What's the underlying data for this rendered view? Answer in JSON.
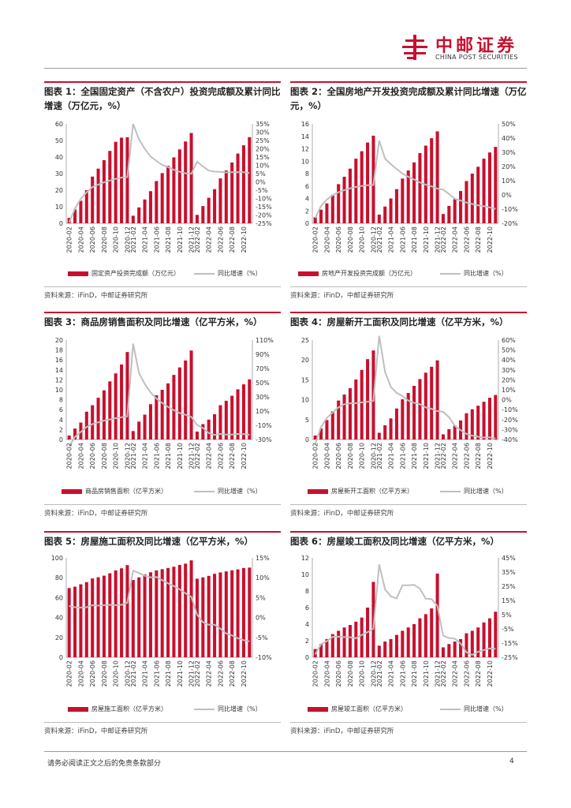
{
  "header": {
    "logo_cn": "中邮证券",
    "logo_en": "CHINA POST SECURITIES"
  },
  "footer": {
    "disclaimer": "请务必阅读正文之后的免责条款部分",
    "page_number": "4"
  },
  "colors": {
    "bar": "#c8102e",
    "line": "#bfbfbf"
  },
  "panels": [
    {
      "title": "图表 1：全国固定资产（不含农户）投资完成额及累计同比增速（万亿元，%）",
      "source": "资料来源：iFinD，中邮证券研究所",
      "bar_legend": "固定资产投资完成额（万亿元）",
      "line_legend": "同比增速（%）"
    },
    {
      "title": "图表 2：全国房地产开发投资完成额及累计同比增速（万亿元，%）",
      "source": "资料来源：iFinD，中邮证券研究所",
      "bar_legend": "房地产开发投资完成额（万亿元）",
      "line_legend": "同比增速（%）"
    },
    {
      "title": "图表 3：商品房销售面积及同比增速（亿平方米，%）",
      "source": "资料来源：iFinD，中邮证券研究所",
      "bar_legend": "商品房销售面积（亿平方米）",
      "line_legend": "同比增速（%）"
    },
    {
      "title": "图表 4：房屋新开工面积及同比增速（亿平方米，%）",
      "source": "资料来源：iFinD，中邮证券研究所",
      "bar_legend": "房屋新开工面积（亿平方米）",
      "line_legend": "同比增速（%）"
    },
    {
      "title": "图表 5：房屋施工面积及同比增速（亿平方米，%）",
      "source": "资料来源：iFinD，中邮证券研究所",
      "bar_legend": "房屋施工面积（亿平方米）",
      "line_legend": "同比增速（%）"
    },
    {
      "title": "图表 6：房屋竣工面积及同比增速（亿平方米，%）",
      "source": "资料来源：iFinD，中邮证券研究所",
      "bar_legend": "房屋竣工面积（亿平方米）",
      "line_legend": "同比增速（%）"
    }
  ],
  "chart_data": [
    {
      "type": "bar",
      "title": "全国固定资产（不含农户）投资完成额及累计同比增速（万亿元，%）",
      "x": [
        "2020-02",
        "2020-03",
        "2020-04",
        "2020-05",
        "2020-06",
        "2020-07",
        "2020-08",
        "2020-09",
        "2020-10",
        "2020-11",
        "2020-12",
        "2021-02",
        "2021-03",
        "2021-04",
        "2021-05",
        "2021-06",
        "2021-07",
        "2021-08",
        "2021-09",
        "2021-10",
        "2021-11",
        "2021-12",
        "2022-02",
        "2022-03",
        "2022-04",
        "2022-05",
        "2022-06",
        "2022-07",
        "2022-08",
        "2022-09",
        "2022-10",
        "2022-11"
      ],
      "x_tick_labels": [
        "2020-02",
        "2020-04",
        "2020-06",
        "2020-08",
        "2020-10",
        "2020-12",
        "2021-02",
        "2021-04",
        "2021-06",
        "2021-08",
        "2021-10",
        "2021-12",
        "2022-02",
        "2022-04",
        "2022-06",
        "2022-08",
        "2022-10"
      ],
      "series": [
        {
          "name": "固定资产投资完成额（万亿元）",
          "axis": "left",
          "values": [
            3.3,
            8.4,
            13.6,
            20.0,
            28.2,
            33.0,
            38.1,
            43.7,
            49.2,
            51.7,
            51.9,
            4.6,
            9.6,
            14.4,
            19.4,
            25.5,
            30.3,
            34.7,
            39.8,
            44.6,
            49.4,
            54.5,
            5.1,
            10.4,
            15.4,
            20.6,
            27.1,
            31.9,
            36.7,
            42.1,
            47.1,
            52.0
          ]
        },
        {
          "name": "同比增速（%）",
          "axis": "right",
          "type": "line",
          "values": [
            -24.5,
            -16.1,
            -10.3,
            -6.3,
            -3.1,
            -1.6,
            -0.3,
            0.8,
            1.8,
            2.6,
            2.9,
            35.0,
            25.6,
            19.9,
            15.4,
            12.6,
            10.3,
            8.9,
            7.3,
            6.1,
            5.2,
            4.9,
            12.2,
            9.3,
            6.8,
            6.2,
            6.1,
            5.7,
            5.8,
            5.9,
            5.8,
            5.3
          ]
        }
      ],
      "ylim_left": [
        0,
        60
      ],
      "yticks_left": [
        0,
        10,
        20,
        30,
        40,
        50,
        60
      ],
      "ylim_right": [
        -25,
        35
      ],
      "yticks_right": [
        -25,
        -20,
        -15,
        -10,
        -5,
        0,
        5,
        10,
        15,
        20,
        25,
        30,
        35
      ],
      "right_tick_format": "percent"
    },
    {
      "type": "bar",
      "title": "全国房地产开发投资完成额及累计同比增速（万亿元，%）",
      "x": [
        "2020-02",
        "2020-03",
        "2020-04",
        "2020-05",
        "2020-06",
        "2020-07",
        "2020-08",
        "2020-09",
        "2020-10",
        "2020-11",
        "2020-12",
        "2021-02",
        "2021-03",
        "2021-04",
        "2021-05",
        "2021-06",
        "2021-07",
        "2021-08",
        "2021-09",
        "2021-10",
        "2021-11",
        "2021-12",
        "2022-02",
        "2022-03",
        "2022-04",
        "2022-05",
        "2022-06",
        "2022-07",
        "2022-08",
        "2022-09",
        "2022-10",
        "2022-11"
      ],
      "x_tick_labels": [
        "2020-02",
        "2020-04",
        "2020-06",
        "2020-08",
        "2020-10",
        "2020-12",
        "2021-02",
        "2021-04",
        "2021-06",
        "2021-08",
        "2021-10",
        "2021-12",
        "2022-02",
        "2022-04",
        "2022-06",
        "2022-08",
        "2022-10"
      ],
      "series": [
        {
          "name": "房地产开发投资完成额（万亿元）",
          "axis": "left",
          "values": [
            1.0,
            2.2,
            3.2,
            4.6,
            6.3,
            7.5,
            8.8,
            10.4,
            11.6,
            13.0,
            14.1,
            1.4,
            2.7,
            4.0,
            5.5,
            7.2,
            8.5,
            9.8,
            11.3,
            12.5,
            13.7,
            14.8,
            1.5,
            2.8,
            3.9,
            5.2,
            6.8,
            8.0,
            9.1,
            10.4,
            11.4,
            12.3
          ]
        },
        {
          "name": "同比增速（%）",
          "axis": "right",
          "type": "line",
          "values": [
            -16.3,
            -7.7,
            -3.3,
            -0.3,
            1.9,
            3.4,
            4.6,
            5.6,
            6.3,
            6.8,
            7.0,
            38.3,
            25.6,
            21.6,
            18.3,
            15.0,
            12.7,
            10.9,
            8.8,
            7.2,
            6.0,
            4.4,
            3.7,
            0.7,
            -2.7,
            -4.0,
            -5.4,
            -6.4,
            -7.4,
            -8.0,
            -8.8,
            -9.8
          ]
        }
      ],
      "ylim_left": [
        0,
        16
      ],
      "yticks_left": [
        0,
        2,
        4,
        6,
        8,
        10,
        12,
        14,
        16
      ],
      "ylim_right": [
        -20,
        50
      ],
      "yticks_right": [
        -20,
        -10,
        0,
        10,
        20,
        30,
        40,
        50
      ],
      "right_tick_format": "percent"
    },
    {
      "type": "bar",
      "title": "商品房销售面积及同比增速（亿平方米，%）",
      "x": [
        "2020-02",
        "2020-03",
        "2020-04",
        "2020-05",
        "2020-06",
        "2020-07",
        "2020-08",
        "2020-09",
        "2020-10",
        "2020-11",
        "2020-12",
        "2021-02",
        "2021-03",
        "2021-04",
        "2021-05",
        "2021-06",
        "2021-07",
        "2021-08",
        "2021-09",
        "2021-10",
        "2021-11",
        "2021-12",
        "2022-02",
        "2022-03",
        "2022-04",
        "2022-05",
        "2022-06",
        "2022-07",
        "2022-08",
        "2022-09",
        "2022-10",
        "2022-11"
      ],
      "x_tick_labels": [
        "2020-02",
        "2020-04",
        "2020-06",
        "2020-08",
        "2020-10",
        "2020-12",
        "2021-02",
        "2021-04",
        "2021-06",
        "2021-08",
        "2021-10",
        "2021-12",
        "2022-02",
        "2022-04",
        "2022-06",
        "2022-08",
        "2022-10"
      ],
      "series": [
        {
          "name": "商品房销售面积（亿平方米）",
          "axis": "left",
          "values": [
            0.8,
            2.2,
            3.4,
            5.6,
            6.9,
            8.4,
            9.9,
            11.7,
            13.3,
            15.1,
            17.6,
            1.7,
            3.6,
            5.0,
            7.1,
            8.9,
            10.0,
            11.3,
            13.0,
            14.5,
            15.9,
            17.9,
            1.6,
            3.1,
            4.0,
            5.1,
            6.9,
            7.8,
            8.8,
            10.1,
            11.1,
            12.1
          ]
        },
        {
          "name": "同比增速（%）",
          "axis": "right",
          "type": "line",
          "values": [
            -39.9,
            -26.3,
            -19.3,
            -12.3,
            -8.4,
            -5.8,
            -3.3,
            -1.8,
            0.0,
            1.3,
            2.6,
            104.9,
            63.8,
            48.1,
            36.3,
            27.7,
            21.5,
            15.9,
            11.3,
            7.3,
            4.8,
            1.9,
            -9.6,
            -13.8,
            -20.9,
            -23.6,
            -22.2,
            -23.1,
            -23.0,
            -22.2,
            -22.3,
            -23.3
          ]
        }
      ],
      "ylim_left": [
        0,
        20
      ],
      "yticks_left": [
        0,
        2,
        4,
        6,
        8,
        10,
        12,
        14,
        16,
        18,
        20
      ],
      "ylim_right": [
        -30,
        110
      ],
      "yticks_right": [
        -30,
        -10,
        10,
        30,
        50,
        70,
        90,
        110
      ],
      "right_tick_format": "percent"
    },
    {
      "type": "bar",
      "title": "房屋新开工面积及同比增速（亿平方米，%）",
      "x": [
        "2020-02",
        "2020-03",
        "2020-04",
        "2020-05",
        "2020-06",
        "2020-07",
        "2020-08",
        "2020-09",
        "2020-10",
        "2020-11",
        "2020-12",
        "2021-02",
        "2021-03",
        "2021-04",
        "2021-05",
        "2021-06",
        "2021-07",
        "2021-08",
        "2021-09",
        "2021-10",
        "2021-11",
        "2021-12",
        "2022-02",
        "2022-03",
        "2022-04",
        "2022-05",
        "2022-06",
        "2022-07",
        "2022-08",
        "2022-09",
        "2022-10",
        "2022-11"
      ],
      "x_tick_labels": [
        "2020-02",
        "2020-04",
        "2020-06",
        "2020-08",
        "2020-10",
        "2020-12",
        "2021-02",
        "2021-04",
        "2021-06",
        "2021-08",
        "2021-10",
        "2021-12",
        "2022-02",
        "2022-04",
        "2022-06",
        "2022-08",
        "2022-10"
      ],
      "series": [
        {
          "name": "房屋新开工面积（亿平方米）",
          "axis": "left",
          "values": [
            1.0,
            2.8,
            4.9,
            7.1,
            9.8,
            11.3,
            12.9,
            15.1,
            17.5,
            20.2,
            22.4,
            1.7,
            3.6,
            5.3,
            7.8,
            10.1,
            11.7,
            13.5,
            15.2,
            16.8,
            18.3,
            19.9,
            1.3,
            2.6,
            3.5,
            4.8,
            6.6,
            7.6,
            8.5,
            9.5,
            10.5,
            11.2
          ]
        },
        {
          "name": "同比增速（%）",
          "axis": "right",
          "type": "line",
          "values": [
            -44.9,
            -27.2,
            -18.4,
            -12.8,
            -7.6,
            -4.5,
            -3.6,
            -3.4,
            -2.6,
            -2.0,
            -1.2,
            64.3,
            28.2,
            12.8,
            6.9,
            3.8,
            -0.9,
            -3.2,
            -4.5,
            -7.7,
            -9.1,
            -11.4,
            -12.2,
            -17.5,
            -26.3,
            -30.6,
            -34.4,
            -36.1,
            -37.2,
            -38.0,
            -37.8,
            -38.9
          ]
        }
      ],
      "ylim_left": [
        0,
        25
      ],
      "yticks_left": [
        0,
        5,
        10,
        15,
        20,
        25
      ],
      "ylim_right": [
        -40,
        60
      ],
      "yticks_right": [
        -40,
        -30,
        -20,
        -10,
        0,
        10,
        20,
        30,
        40,
        50,
        60
      ],
      "right_tick_format": "percent"
    },
    {
      "type": "bar",
      "title": "房屋施工面积及同比增速（亿平方米，%）",
      "x": [
        "2020-02",
        "2020-03",
        "2020-04",
        "2020-05",
        "2020-06",
        "2020-07",
        "2020-08",
        "2020-09",
        "2020-10",
        "2020-11",
        "2020-12",
        "2021-02",
        "2021-03",
        "2021-04",
        "2021-05",
        "2021-06",
        "2021-07",
        "2021-08",
        "2021-09",
        "2021-10",
        "2021-11",
        "2021-12",
        "2022-02",
        "2022-03",
        "2022-04",
        "2022-05",
        "2022-06",
        "2022-07",
        "2022-08",
        "2022-09",
        "2022-10",
        "2022-11"
      ],
      "x_tick_labels": [
        "2020-02",
        "2020-04",
        "2020-06",
        "2020-08",
        "2020-10",
        "2020-12",
        "2021-02",
        "2021-04",
        "2021-06",
        "2021-08",
        "2021-10",
        "2021-12",
        "2022-02",
        "2022-04",
        "2022-06",
        "2022-08",
        "2022-10"
      ],
      "series": [
        {
          "name": "房屋施工面积（亿平方米）",
          "axis": "left",
          "values": [
            69.6,
            71.0,
            73.4,
            75.6,
            79.3,
            80.5,
            82.1,
            84.5,
            87.4,
            89.5,
            92.7,
            77.8,
            80.4,
            83.4,
            85.5,
            87.4,
            88.6,
            89.8,
            91.1,
            92.9,
            94.2,
            97.5,
            79.0,
            80.4,
            81.9,
            84.0,
            85.4,
            86.4,
            87.5,
            88.4,
            89.8,
            90.2
          ]
        },
        {
          "name": "同比增速（%）",
          "axis": "right",
          "type": "line",
          "values": [
            2.9,
            2.6,
            2.5,
            2.6,
            3.1,
            3.0,
            3.1,
            3.2,
            3.1,
            3.2,
            3.7,
            11.8,
            11.2,
            10.5,
            10.1,
            10.2,
            9.4,
            8.6,
            7.9,
            7.1,
            6.1,
            5.2,
            0.7,
            -1.2,
            -1.8,
            -1.8,
            -2.8,
            -4.0,
            -4.5,
            -5.2,
            -5.7,
            -6.0
          ]
        }
      ],
      "ylim_left": [
        0,
        100
      ],
      "yticks_left": [
        0,
        20,
        40,
        60,
        80,
        100
      ],
      "ylim_right": [
        -10,
        15
      ],
      "yticks_right": [
        -10,
        -5,
        0,
        5,
        10,
        15
      ],
      "right_tick_format": "percent"
    },
    {
      "type": "bar",
      "title": "房屋竣工面积及同比增速（亿平方米，%）",
      "x": [
        "2020-02",
        "2020-03",
        "2020-04",
        "2020-05",
        "2020-06",
        "2020-07",
        "2020-08",
        "2020-09",
        "2020-10",
        "2020-11",
        "2020-12",
        "2021-02",
        "2021-03",
        "2021-04",
        "2021-05",
        "2021-06",
        "2021-07",
        "2021-08",
        "2021-09",
        "2021-10",
        "2021-11",
        "2021-12",
        "2022-02",
        "2022-03",
        "2022-04",
        "2022-05",
        "2022-06",
        "2022-07",
        "2022-08",
        "2022-09",
        "2022-10",
        "2022-11"
      ],
      "x_tick_labels": [
        "2020-02",
        "2020-04",
        "2020-06",
        "2020-08",
        "2020-10",
        "2020-12",
        "2021-02",
        "2021-04",
        "2021-06",
        "2021-08",
        "2021-10",
        "2021-12",
        "2022-02",
        "2022-04",
        "2022-06",
        "2022-08",
        "2022-10"
      ],
      "series": [
        {
          "name": "房屋竣工面积（亿平方米）",
          "axis": "left",
          "values": [
            1.0,
            1.6,
            2.2,
            2.8,
            3.2,
            3.6,
            3.9,
            4.3,
            4.8,
            6.0,
            9.1,
            1.4,
            1.9,
            2.2,
            2.7,
            3.2,
            3.6,
            4.0,
            4.7,
            5.2,
            5.9,
            10.1,
            1.2,
            1.6,
            1.9,
            2.2,
            2.9,
            3.2,
            3.6,
            4.2,
            4.7,
            5.5
          ]
        },
        {
          "name": "同比增速（%）",
          "axis": "right",
          "type": "line",
          "values": [
            -22.9,
            -15.8,
            -13.6,
            -10.6,
            -10.5,
            -10.8,
            -10.9,
            -11.6,
            -9.2,
            -7.3,
            -4.9,
            40.4,
            22.9,
            17.9,
            16.4,
            25.7,
            25.7,
            26.0,
            23.4,
            16.3,
            16.0,
            11.2,
            -9.8,
            -11.5,
            -11.9,
            -15.3,
            -21.5,
            -23.3,
            -21.1,
            -19.9,
            -18.7,
            -19.0
          ]
        }
      ],
      "ylim_left": [
        0,
        12
      ],
      "yticks_left": [
        0,
        2,
        4,
        6,
        8,
        10,
        12
      ],
      "ylim_right": [
        -25,
        45
      ],
      "yticks_right": [
        -25,
        -15,
        -5,
        5,
        15,
        25,
        35,
        45
      ],
      "right_tick_format": "percent"
    }
  ]
}
